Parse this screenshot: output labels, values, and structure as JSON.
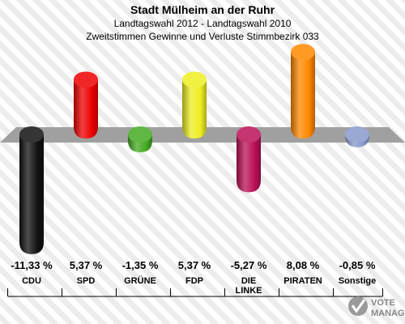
{
  "chart_data": {
    "type": "bar",
    "title": "Stadt Mülheim an der Ruhr",
    "subtitle1": "Landtagswahl 2012 - Landtagswahl 2010",
    "subtitle2": "Zweitstimmen Gewinne und Verluste Stimmbezirk 033",
    "categories": [
      "CDU",
      "SPD",
      "GRÜNE",
      "FDP",
      "DIE LINKE",
      "PIRATEN",
      "Sonstige"
    ],
    "category_lines": [
      [
        "CDU"
      ],
      [
        "SPD"
      ],
      [
        "GRÜNE"
      ],
      [
        "FDP"
      ],
      [
        "DIE",
        "LINKE"
      ],
      [
        "PIRATEN"
      ],
      [
        "Sonstige"
      ]
    ],
    "values": [
      -11.33,
      5.37,
      -1.35,
      5.37,
      -5.27,
      8.08,
      -0.85
    ],
    "value_labels": [
      "-11,33 %",
      "5,37 %",
      "-1,35 %",
      "5,37 %",
      "-5,27 %",
      "8,08 %",
      "-0,85 %"
    ],
    "colors": [
      "#111111",
      "#ee0000",
      "#44aa22",
      "#eeee22",
      "#bb1155",
      "#ff8800",
      "#8899cc"
    ],
    "ylim": [
      -12,
      9
    ],
    "grid": false
  },
  "watermark": "VOTE MANAGER",
  "colors": {
    "baseline_band": "#a0a0a0",
    "stripes": "#e6e6e6"
  }
}
